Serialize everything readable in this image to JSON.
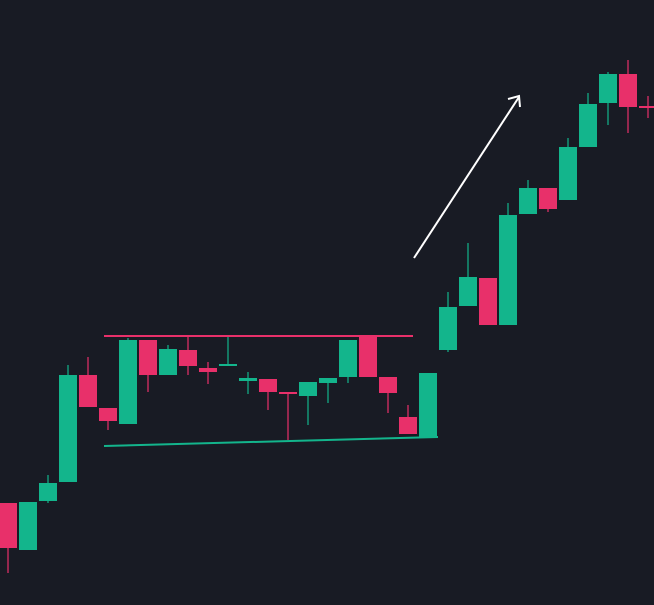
{
  "chart_data": {
    "type": "candlestick",
    "categories": [
      null,
      null,
      null,
      null,
      null,
      null,
      null,
      null,
      null,
      null,
      null,
      null,
      null,
      null,
      null,
      null,
      null,
      null,
      null,
      null,
      null,
      null,
      null,
      null,
      null,
      null,
      null,
      null,
      null,
      null,
      null,
      null,
      null
    ],
    "open": [
      102,
      55,
      104,
      123,
      230,
      197,
      181,
      265,
      230,
      255,
      237,
      239,
      224,
      226,
      213,
      209,
      222,
      228,
      269,
      228,
      188,
      168,
      255,
      299,
      327,
      280,
      391,
      417,
      405,
      458,
      502,
      531,
      499
    ],
    "high": [
      102,
      103,
      130,
      240,
      248,
      197,
      267,
      265,
      260,
      269,
      243,
      268,
      233,
      226,
      213,
      223,
      227,
      265,
      269,
      228,
      200,
      232,
      313,
      362,
      327,
      402,
      425,
      417,
      467,
      512,
      533,
      545,
      509
    ],
    "low": [
      32,
      55,
      102,
      123,
      198,
      175,
      181,
      213,
      230,
      230,
      221,
      239,
      211,
      195,
      165,
      180,
      202,
      222,
      228,
      192,
      171,
      168,
      253,
      299,
      280,
      280,
      391,
      393,
      405,
      458,
      480,
      472,
      487
    ],
    "close": [
      57,
      103,
      122,
      230,
      198,
      184,
      265,
      230,
      256,
      239,
      233,
      241,
      227,
      213,
      211,
      223,
      227,
      265,
      228,
      212,
      171,
      232,
      298,
      328,
      280,
      390,
      417,
      396,
      458,
      501,
      531,
      498,
      497
    ],
    "up_color": "#13b58c",
    "down_color": "#e8306a",
    "ylim": [
      0,
      605
    ]
  }
}
